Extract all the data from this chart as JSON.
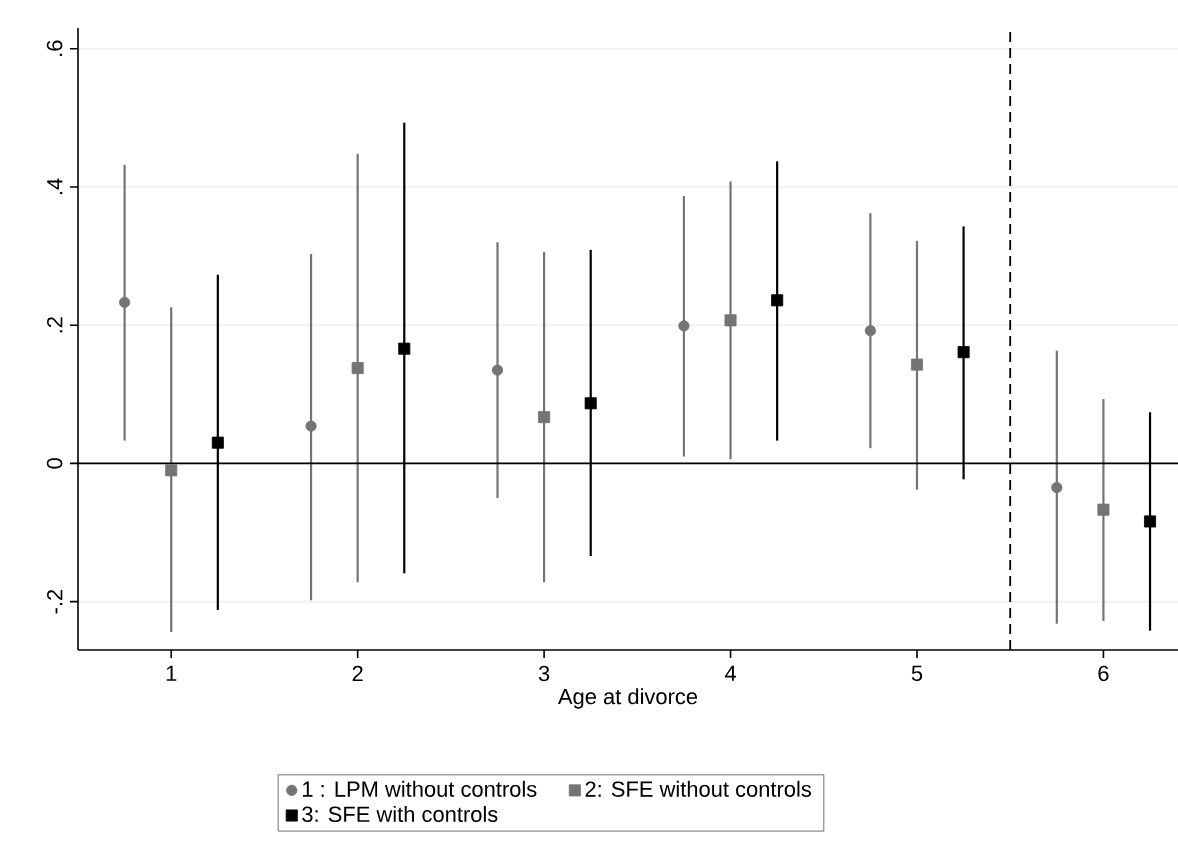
{
  "chart_data": {
    "type": "scatter",
    "xlabel": "Age at divorce",
    "xlim": [
      0.5,
      6.4
    ],
    "xticks": [
      1,
      2,
      3,
      4,
      5,
      6
    ],
    "ylim": [
      -0.27,
      0.63
    ],
    "yticks": [
      {
        "value": -0.2,
        "label": "-.2"
      },
      {
        "value": 0,
        "label": "0"
      },
      {
        "value": 0.2,
        "label": ".2"
      },
      {
        "value": 0.4,
        "label": ".4"
      },
      {
        "value": 0.6,
        "label": ".6"
      }
    ],
    "grid": "y",
    "legend": "bottom",
    "ref_lines": [
      {
        "axis": "y",
        "value": 0,
        "color": "#000000",
        "line_style": "solid"
      },
      {
        "axis": "x",
        "value": 5.5,
        "color": "#000000",
        "line_style": "dashed"
      }
    ],
    "series": [
      {
        "name": "1 : LPM without controls",
        "color": "#747474",
        "marker": "circle",
        "x": [
          0.75,
          1.75,
          2.75,
          3.75,
          4.75,
          5.75
        ],
        "values": [
          0.233,
          0.054,
          0.135,
          0.199,
          0.192,
          -0.035
        ],
        "errors": [
          [
            0.033,
            0.432
          ],
          [
            -0.198,
            0.303
          ],
          [
            -0.05,
            0.32
          ],
          [
            0.01,
            0.387
          ],
          [
            0.022,
            0.362
          ],
          [
            -0.232,
            0.163
          ]
        ]
      },
      {
        "name": "2: SFE without controls",
        "color": "#747474",
        "marker": "square",
        "x": [
          1,
          2,
          3,
          4,
          5,
          6
        ],
        "values": [
          -0.01,
          0.138,
          0.067,
          0.207,
          0.143,
          -0.067
        ],
        "errors": [
          [
            -0.244,
            0.226
          ],
          [
            -0.172,
            0.448
          ],
          [
            -0.172,
            0.306
          ],
          [
            0.006,
            0.408
          ],
          [
            -0.038,
            0.322
          ],
          [
            -0.228,
            0.093
          ]
        ]
      },
      {
        "name": "3: SFE with controls",
        "color": "#000000",
        "marker": "square",
        "x": [
          1.25,
          2.25,
          3.25,
          4.25,
          5.25,
          6.25
        ],
        "values": [
          0.03,
          0.166,
          0.087,
          0.236,
          0.161,
          -0.084
        ],
        "errors": [
          [
            -0.212,
            0.273
          ],
          [
            -0.159,
            0.493
          ],
          [
            -0.134,
            0.309
          ],
          [
            0.033,
            0.437
          ],
          [
            -0.023,
            0.343
          ],
          [
            -0.242,
            0.074
          ]
        ]
      }
    ]
  }
}
